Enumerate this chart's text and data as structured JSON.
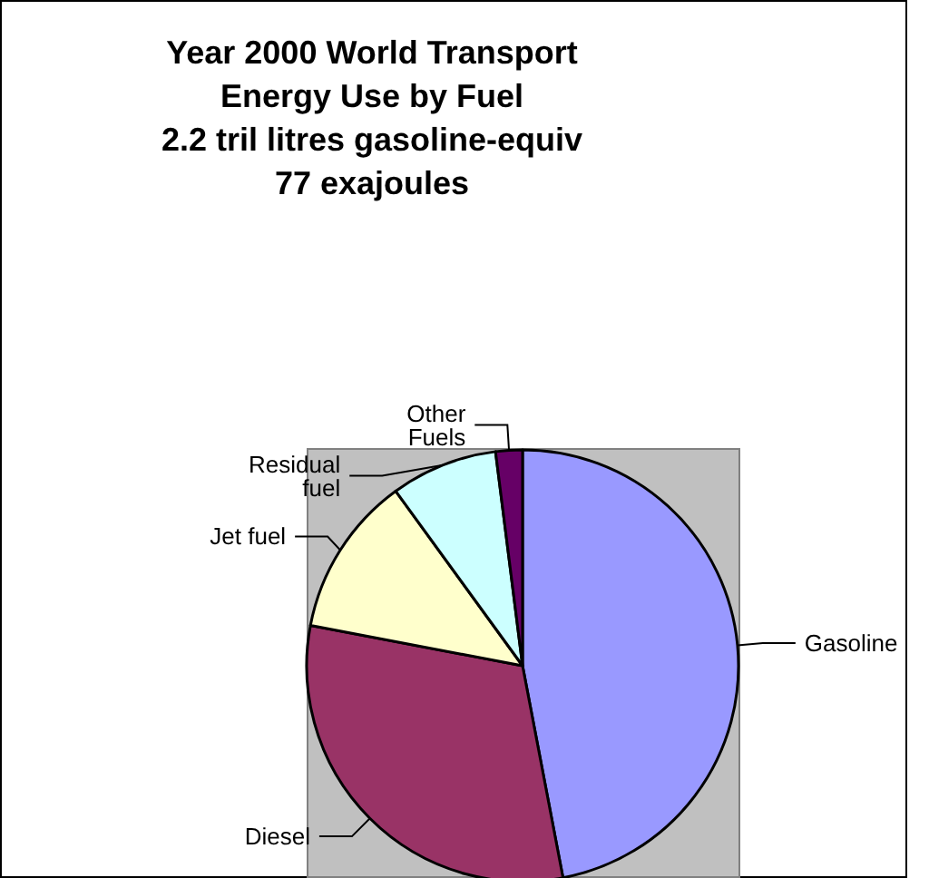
{
  "chart_data": {
    "type": "pie",
    "title": "Year 2000 World Transport\nEnergy Use by Fuel\n2.2 tril litres gasoline-equiv\n77 exajoules",
    "categories": [
      "Gasoline",
      "Diesel",
      "Jet fuel",
      "Residual\nfuel",
      "Other\nFuels"
    ],
    "values": [
      47,
      31,
      12,
      8,
      2
    ],
    "colors": [
      "#9999ff",
      "#993366",
      "#ffffcc",
      "#ccffff",
      "#660066"
    ],
    "legend": false
  }
}
